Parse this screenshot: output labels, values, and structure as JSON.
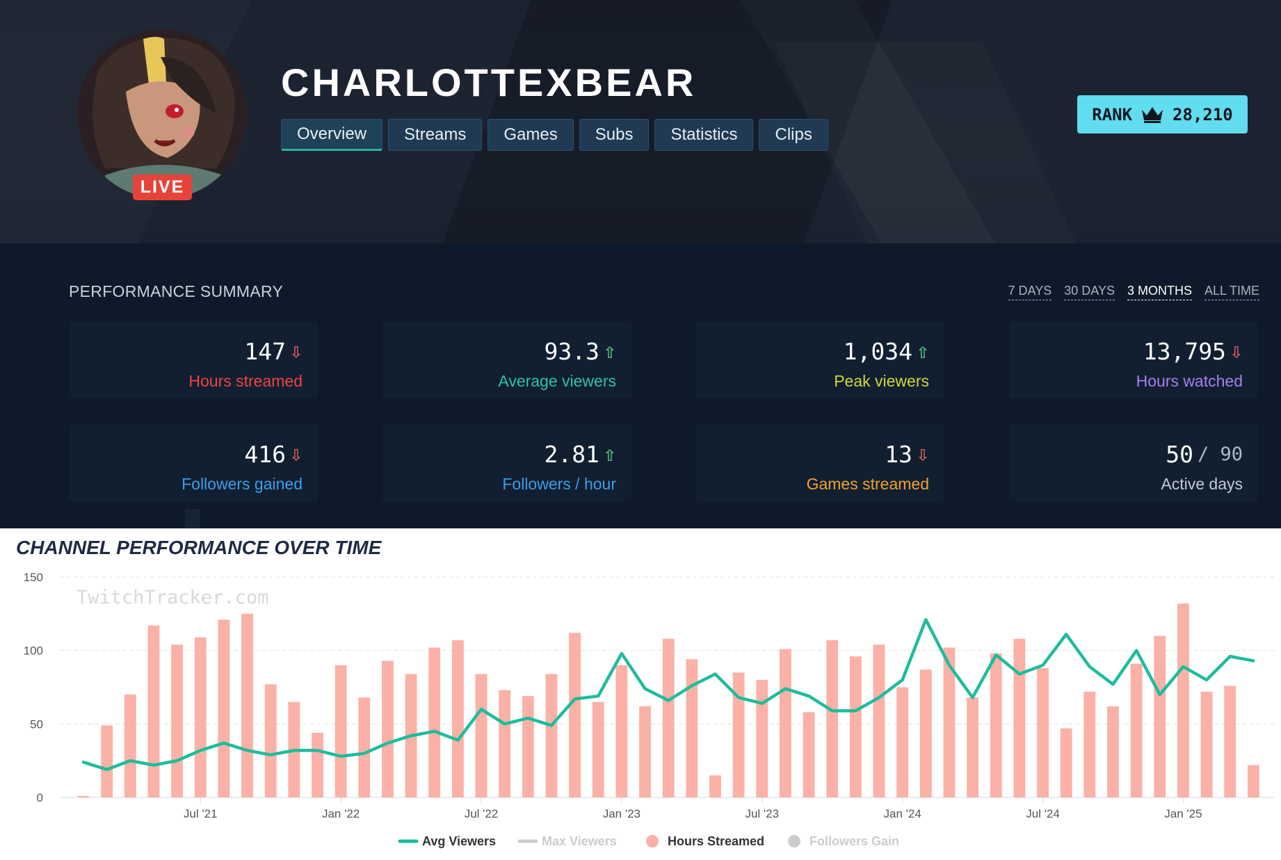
{
  "header": {
    "channel_name": "CHARLOTTEXBEAR",
    "live_badge": "LIVE",
    "tabs": [
      {
        "label": "Overview",
        "active": true
      },
      {
        "label": "Streams"
      },
      {
        "label": "Games"
      },
      {
        "label": "Subs"
      },
      {
        "label": "Statistics"
      },
      {
        "label": "Clips"
      }
    ],
    "rank": {
      "label": "RANK",
      "icon": "crown-icon",
      "value": "28,210"
    }
  },
  "summary": {
    "title": "PERFORMANCE SUMMARY",
    "ranges": [
      "7 DAYS",
      "30 DAYS",
      "3 MONTHS",
      "ALL TIME"
    ],
    "active_range": "3 MONTHS",
    "cards": [
      {
        "value": "147",
        "label": "Hours streamed",
        "trend": "down",
        "color": "#ef4444"
      },
      {
        "value": "93.3",
        "label": "Average viewers",
        "trend": "up",
        "color": "#2dc3a0"
      },
      {
        "value": "1,034",
        "label": "Peak viewers",
        "trend": "up",
        "color": "#d4d63a"
      },
      {
        "value": "13,795",
        "label": "Hours watched",
        "trend": "down",
        "color": "#a87ff0"
      },
      {
        "value": "416",
        "label": "Followers gained",
        "trend": "down",
        "color": "#3b9fe8"
      },
      {
        "value": "2.81",
        "label": "Followers / hour",
        "trend": "up",
        "color": "#3b9fe8"
      },
      {
        "value": "13",
        "label": "Games streamed",
        "trend": "down",
        "color": "#f5a02a"
      },
      {
        "value": "50",
        "suffix": "/ 90",
        "label": "Active days",
        "trend": "",
        "color": "#c3ccd6"
      }
    ]
  },
  "chart_title": "CHANNEL PERFORMANCE OVER TIME",
  "chart_data": {
    "type": "bar",
    "watermark": "TwitchTracker.com",
    "ylim": [
      0,
      150
    ],
    "yticks": [
      0,
      50,
      100,
      150
    ],
    "x_tick_labels": [
      "Jul '21",
      "Jan '22",
      "Jul '22",
      "Jan '23",
      "Jul '23",
      "Jan '24",
      "Jul '24",
      "Jan '25"
    ],
    "x_tick_index": [
      5,
      11,
      17,
      23,
      29,
      35,
      41,
      47
    ],
    "series": [
      {
        "name": "Hours Streamed",
        "type": "bar",
        "color": "#fbb1a6",
        "values": [
          1,
          49,
          70,
          117,
          104,
          109,
          121,
          125,
          77,
          65,
          44,
          90,
          68,
          93,
          84,
          102,
          107,
          84,
          73,
          69,
          84,
          112,
          65,
          90,
          62,
          108,
          94,
          15,
          85,
          80,
          101,
          58,
          107,
          96,
          104,
          75,
          87,
          102,
          68,
          98,
          108,
          88,
          47,
          72,
          62,
          91,
          110,
          132,
          72,
          76,
          22
        ]
      },
      {
        "name": "Avg Viewers",
        "type": "line",
        "color": "#1ebc9c",
        "values": [
          24,
          19,
          25,
          22,
          25,
          32,
          37,
          32,
          29,
          32,
          32,
          28,
          30,
          37,
          42,
          45,
          39,
          60,
          50,
          54,
          49,
          67,
          69,
          98,
          74,
          66,
          76,
          84,
          68,
          64,
          74,
          69,
          59,
          59,
          68,
          80,
          121,
          90,
          68,
          97,
          84,
          90,
          111,
          89,
          77,
          100,
          70,
          89,
          80,
          96,
          93
        ]
      },
      {
        "name": "Max Viewers",
        "type": "line",
        "color": "#cccccc",
        "hidden": true
      },
      {
        "name": "Followers Gain",
        "type": "line",
        "color": "#cccccc",
        "hidden": true
      }
    ],
    "legend": [
      "Avg Viewers",
      "Max Viewers",
      "Hours Streamed",
      "Followers Gain"
    ],
    "legend_position": "bottom"
  }
}
